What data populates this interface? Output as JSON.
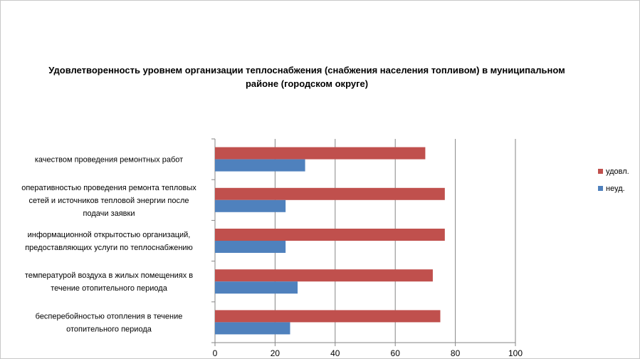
{
  "chart_data": {
    "type": "bar",
    "orientation": "horizontal",
    "title": "Удовлетворенность уровнем организации теплоснабжения (снабжения населения топливом) в муниципальном районе (городском округе)",
    "categories": [
      [
        "качеством проведения  ремонтных работ"
      ],
      [
        "оперативностью проведения ремонта тепловых",
        "сетей и источников тепловой энергии после",
        "подачи заявки"
      ],
      [
        "информационной открытостью организаций,",
        "предоставляющих услуги по теплоснабжению"
      ],
      [
        "температурой воздуха в жилых помещениях  в",
        "течение  отопительного периода"
      ],
      [
        "бесперебойностью  отопления в течение",
        "отопительного периода"
      ]
    ],
    "series": [
      {
        "name": "удовл.",
        "color": "#c0504d",
        "values": [
          70,
          76.5,
          76.5,
          72.5,
          75
        ]
      },
      {
        "name": "неуд.",
        "color": "#4f81bd",
        "values": [
          30,
          23.5,
          23.5,
          27.5,
          25
        ]
      }
    ],
    "xlim": [
      0,
      100
    ],
    "xticks": [
      0,
      20,
      40,
      60,
      80,
      100
    ],
    "grid": true,
    "legend_position": "right"
  }
}
